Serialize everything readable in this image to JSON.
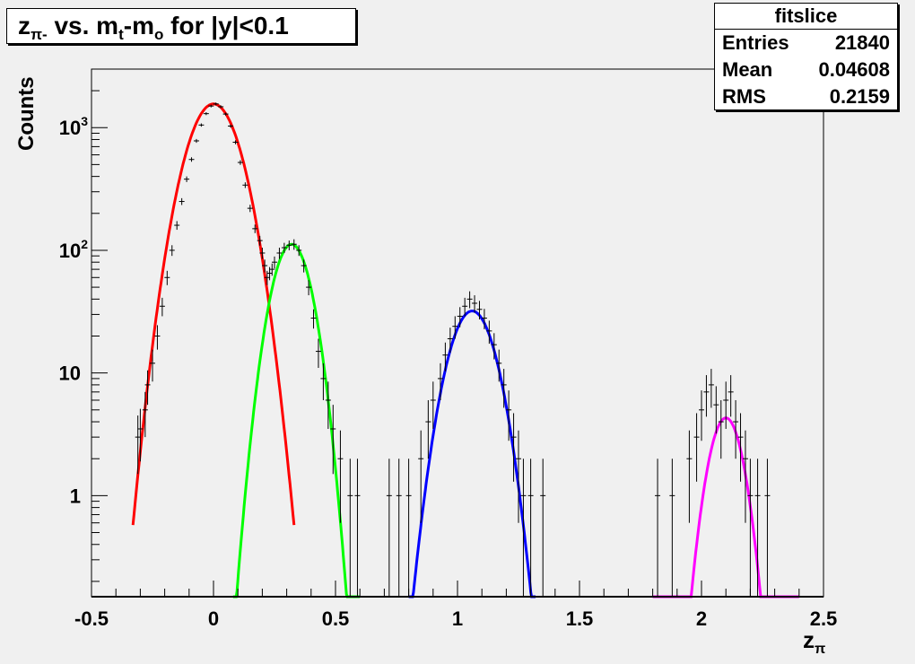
{
  "title": {
    "main": "z",
    "sub_pi": "π-",
    "mid1": " vs. m",
    "sub_t": "t",
    "mid2": "-m",
    "sub_o": "o",
    "end": " for |y|<0.1"
  },
  "stats": {
    "header": "fitslice",
    "rows": [
      {
        "label": "Entries",
        "value": "21840"
      },
      {
        "label": "Mean",
        "value": "0.04608"
      },
      {
        "label": "RMS",
        "value": "0.2159"
      }
    ]
  },
  "colors": {
    "frame_bg": "#f0f0f0",
    "red": "#ff0000",
    "green": "#00ff00",
    "blue": "#0000ff",
    "magenta": "#ff00ff",
    "data": "#000000"
  },
  "chart_data": {
    "type": "scatter",
    "xlabel_main": "z",
    "xlabel_sub": "π",
    "ylabel": "Counts",
    "xlim": [
      -0.5,
      2.5
    ],
    "ylim": [
      0.15,
      3000
    ],
    "ylog": true,
    "x_ticks": [
      "-0.5",
      "0",
      "0.5",
      "1",
      "1.5",
      "2",
      "2.5"
    ],
    "y_ticks": [
      {
        "v": 1,
        "label": "1"
      },
      {
        "v": 10,
        "label": "10"
      },
      {
        "v": 100,
        "label": "10",
        "sup": "2"
      },
      {
        "v": 1000,
        "label": "10",
        "sup": "3"
      }
    ],
    "points": [
      [
        -0.31,
        3.0,
        1.5
      ],
      [
        -0.3,
        3.5,
        1.6
      ],
      [
        -0.28,
        5.0,
        2.0
      ],
      [
        -0.27,
        8.0,
        2.5
      ],
      [
        -0.25,
        12,
        3.5
      ],
      [
        -0.23,
        20,
        4.5
      ],
      [
        -0.21,
        35,
        6
      ],
      [
        -0.19,
        60,
        8
      ],
      [
        -0.17,
        100,
        10
      ],
      [
        -0.15,
        160,
        13
      ],
      [
        -0.13,
        250,
        16
      ],
      [
        -0.11,
        380,
        20
      ],
      [
        -0.09,
        550,
        23
      ],
      [
        -0.07,
        780,
        28
      ],
      [
        -0.05,
        1050,
        32
      ],
      [
        -0.03,
        1300,
        36
      ],
      [
        -0.01,
        1500,
        39
      ],
      [
        0.01,
        1560,
        40
      ],
      [
        0.03,
        1480,
        38
      ],
      [
        0.05,
        1290,
        36
      ],
      [
        0.07,
        1030,
        32
      ],
      [
        0.09,
        760,
        28
      ],
      [
        0.11,
        520,
        23
      ],
      [
        0.13,
        340,
        18
      ],
      [
        0.15,
        220,
        15
      ],
      [
        0.17,
        150,
        12
      ],
      [
        0.19,
        120,
        11
      ],
      [
        0.2,
        95,
        10
      ],
      [
        0.21,
        75,
        9
      ],
      [
        0.22,
        60,
        8
      ],
      [
        0.23,
        65,
        8
      ],
      [
        0.24,
        70,
        8
      ],
      [
        0.25,
        80,
        9
      ],
      [
        0.27,
        95,
        10
      ],
      [
        0.29,
        105,
        10
      ],
      [
        0.31,
        110,
        10
      ],
      [
        0.33,
        112,
        11
      ],
      [
        0.35,
        100,
        10
      ],
      [
        0.37,
        75,
        9
      ],
      [
        0.39,
        50,
        7
      ],
      [
        0.41,
        28,
        5
      ],
      [
        0.43,
        15,
        4
      ],
      [
        0.45,
        9,
        3
      ],
      [
        0.47,
        6,
        2.5
      ],
      [
        0.49,
        3.5,
        2
      ],
      [
        0.52,
        2.0,
        1.4
      ],
      [
        0.56,
        1.0,
        1.0
      ],
      [
        0.59,
        1.0,
        1.0
      ],
      [
        0.72,
        1.0,
        1.0
      ],
      [
        0.76,
        1.0,
        1.0
      ],
      [
        0.8,
        1.0,
        1.0
      ],
      [
        0.85,
        2.0,
        1.4
      ],
      [
        0.88,
        4.0,
        2
      ],
      [
        0.9,
        6,
        2.5
      ],
      [
        0.93,
        9,
        3
      ],
      [
        0.95,
        14,
        3.7
      ],
      [
        0.97,
        19,
        4.4
      ],
      [
        0.99,
        24,
        5
      ],
      [
        1.01,
        29,
        5.4
      ],
      [
        1.03,
        35,
        6
      ],
      [
        1.05,
        40,
        6.3
      ],
      [
        1.07,
        37,
        6
      ],
      [
        1.09,
        33,
        5.7
      ],
      [
        1.11,
        28,
        5.3
      ],
      [
        1.13,
        22,
        4.7
      ],
      [
        1.15,
        17,
        4.1
      ],
      [
        1.17,
        12,
        3.5
      ],
      [
        1.19,
        8,
        2.8
      ],
      [
        1.21,
        5,
        2.2
      ],
      [
        1.23,
        3,
        1.7
      ],
      [
        1.25,
        2,
        1.4
      ],
      [
        1.27,
        1.0,
        1.0
      ],
      [
        1.3,
        1.0,
        1.0
      ],
      [
        1.35,
        1.0,
        1.0
      ],
      [
        1.82,
        1.0,
        1.0
      ],
      [
        1.88,
        1.0,
        1.0
      ],
      [
        1.95,
        2.0,
        1.4
      ],
      [
        1.98,
        3.0,
        1.7
      ],
      [
        2.0,
        5.0,
        2.2
      ],
      [
        2.02,
        7,
        2.6
      ],
      [
        2.04,
        8,
        2.8
      ],
      [
        2.06,
        5.5,
        2.3
      ],
      [
        2.08,
        4.0,
        2
      ],
      [
        2.1,
        6,
        2.5
      ],
      [
        2.12,
        7,
        2.6
      ],
      [
        2.14,
        4.0,
        2
      ],
      [
        2.16,
        3.0,
        1.7
      ],
      [
        2.18,
        2.0,
        1.4
      ],
      [
        2.2,
        1.0,
        1.0
      ],
      [
        2.23,
        1.0,
        1.0
      ],
      [
        2.27,
        1.0,
        1.0
      ]
    ],
    "fits": [
      {
        "color": "#ff0000",
        "amp": 1560,
        "mean": 0.0,
        "sigma": 0.083,
        "range": [
          -0.33,
          0.33
        ]
      },
      {
        "color": "#00ff00",
        "amp": 112,
        "mean": 0.32,
        "sigma": 0.062,
        "range": [
          0.08,
          0.6
        ]
      },
      {
        "color": "#0000ff",
        "amp": 32,
        "mean": 1.06,
        "sigma": 0.074,
        "range": [
          0.8,
          1.32
        ]
      },
      {
        "color": "#ff00ff",
        "amp": 4.3,
        "mean": 2.1,
        "sigma": 0.055,
        "range": [
          1.8,
          2.4
        ]
      }
    ]
  }
}
